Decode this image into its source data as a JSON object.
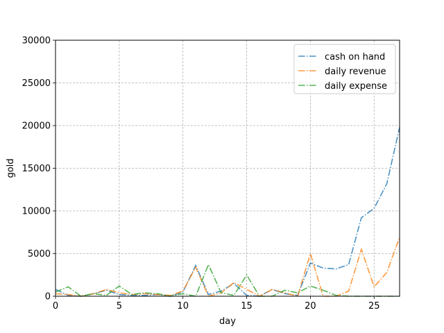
{
  "chart_data": {
    "type": "line",
    "title": "",
    "xlabel": "day",
    "ylabel": "gold",
    "xlim": [
      0,
      27
    ],
    "ylim": [
      0,
      30000
    ],
    "xticks": [
      0,
      5,
      10,
      15,
      20,
      25
    ],
    "yticks": [
      0,
      5000,
      10000,
      15000,
      20000,
      25000,
      30000
    ],
    "grid": true,
    "legend_position": "top-right",
    "x": [
      0,
      1,
      2,
      3,
      4,
      5,
      6,
      7,
      8,
      9,
      10,
      11,
      12,
      13,
      14,
      15,
      16,
      17,
      18,
      19,
      20,
      21,
      22,
      23,
      24,
      25,
      26,
      27
    ],
    "series": [
      {
        "name": "cash on hand",
        "color": "#1f77b4",
        "values": [
          800,
          100,
          0,
          300,
          700,
          200,
          100,
          100,
          200,
          0,
          500,
          3600,
          200,
          600,
          1500,
          100,
          0,
          800,
          300,
          100,
          3900,
          3300,
          3200,
          3700,
          9200,
          10300,
          13200,
          19800
        ]
      },
      {
        "name": "daily revenue",
        "color": "#ff7f0e",
        "values": [
          300,
          200,
          0,
          300,
          800,
          400,
          200,
          300,
          200,
          100,
          600,
          3400,
          0,
          400,
          1600,
          800,
          0,
          800,
          400,
          0,
          5000,
          0,
          0,
          600,
          5500,
          1100,
          2800,
          6900
        ]
      },
      {
        "name": "daily expense",
        "color": "#2ca02c",
        "values": [
          500,
          1100,
          0,
          300,
          100,
          1200,
          200,
          400,
          300,
          0,
          300,
          0,
          3700,
          400,
          100,
          2500,
          0,
          0,
          700,
          400,
          1200,
          700,
          100,
          0,
          0,
          0,
          0,
          0
        ]
      }
    ]
  }
}
